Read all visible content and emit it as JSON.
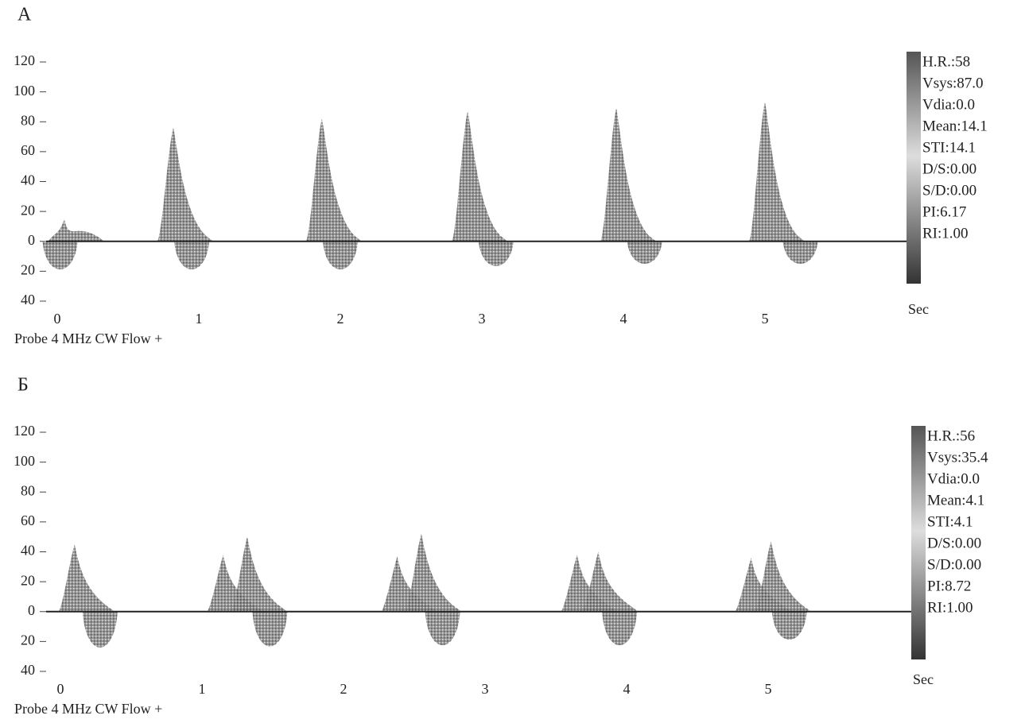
{
  "chart_data": [
    {
      "type": "doppler",
      "panel_label": "А",
      "ylim": [
        -40,
        120
      ],
      "yticks": [
        {
          "value": -40,
          "label": "40"
        },
        {
          "value": -20,
          "label": "20"
        },
        0,
        20,
        40,
        60,
        80,
        100,
        120
      ],
      "xlim": [
        0,
        6
      ],
      "xticks": [
        0,
        1,
        2,
        3,
        4,
        5
      ],
      "x_unit": "Sec",
      "series": [
        {
          "x": [
            0.05,
            0.82,
            1.87,
            2.9,
            3.95,
            5.0
          ],
          "values": [
            15,
            76,
            82,
            87,
            89,
            93
          ]
        },
        {
          "x": [
            0.02,
            0.95,
            2.0,
            3.1,
            4.15,
            5.25
          ],
          "values": [
            -25,
            -25,
            -25,
            -22,
            -20,
            -20
          ]
        }
      ],
      "readouts": [
        "H.R.:58",
        "Vsys:87.0",
        "Vdia:0.0",
        "Mean:14.1",
        "STI:14.1",
        "D/S:0.00",
        "S/D:0.00",
        "PI:6.17",
        "RI:1.00"
      ],
      "footer": "Probe 4 MHz CW  Flow +"
    },
    {
      "type": "doppler",
      "panel_label": "Б",
      "ylim": [
        -40,
        120
      ],
      "yticks": [
        {
          "value": -40,
          "label": "40"
        },
        {
          "value": -20,
          "label": "20"
        },
        0,
        20,
        40,
        60,
        80,
        100,
        120
      ],
      "xlim": [
        0,
        6
      ],
      "xticks": [
        0,
        1,
        2,
        3,
        4,
        5
      ],
      "x_unit": "Sec",
      "series": [
        {
          "x": [
            0.1,
            1.15,
            1.32,
            2.38,
            2.55,
            3.65,
            3.8,
            4.88,
            5.02
          ],
          "values": [
            45,
            38,
            50,
            37,
            52,
            38,
            40,
            36,
            47
          ]
        },
        {
          "x": [
            0.28,
            1.48,
            2.7,
            3.95,
            5.15
          ],
          "values": [
            -32,
            -31,
            -30,
            -30,
            -25
          ]
        }
      ],
      "readouts": [
        "H.R.:56",
        "Vsys:35.4",
        "Vdia:0.0",
        "Mean:4.1",
        "STI:4.1",
        "D/S:0.00",
        "S/D:0.00",
        "PI:8.72",
        "RI:1.00"
      ],
      "footer": "Probe 4 MHz CW  Flow +"
    }
  ]
}
